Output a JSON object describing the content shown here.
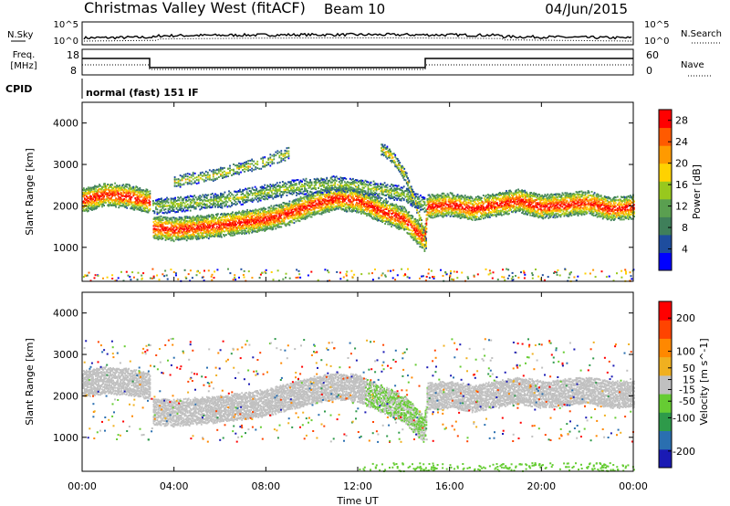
{
  "header": {
    "station": "Christmas Valley West (fitACF)",
    "beam": "Beam 10",
    "date": "04/Jun/2015"
  },
  "strip_labels": {
    "nsky": "N.Sky",
    "nsearch": "N.Search",
    "freq": "Freq.",
    "freq_unit": "[MHz]",
    "nave": "Nave",
    "cpid": "CPID",
    "cpid_value": "normal (fast) 151 IF"
  },
  "strip_ticks": {
    "noise_left": [
      "10^5",
      "10^0"
    ],
    "noise_right": [
      "10^5",
      "10^0"
    ],
    "freq_left": [
      "18",
      "8"
    ],
    "nave_right": [
      "60",
      "0"
    ]
  },
  "colors": {
    "power": [
      "#0000ff",
      "#1e4d9e",
      "#3f7f5a",
      "#5a9f50",
      "#98c81e",
      "#ffd200",
      "#ff9a00",
      "#ff5a00",
      "#ff0000"
    ],
    "velocity": [
      "#1a1ab4",
      "#2a6fb0",
      "#2e9a4a",
      "#66cc33",
      "#c0c0c0",
      "#f0b020",
      "#ff8800",
      "#ff4400",
      "#ff0000"
    ],
    "gs_gray": "#c0c0c0"
  },
  "chart_data": [
    {
      "type": "heatmap",
      "title": "Power",
      "xlabel": "Time UT",
      "ylabel": "Slant Range [km]",
      "xlim": [
        0,
        24
      ],
      "ylim": [
        180,
        4500
      ],
      "xticks": [
        "00:00",
        "04:00",
        "08:00",
        "12:00",
        "16:00",
        "20:00",
        "00:00"
      ],
      "yticks": [
        1000,
        2000,
        3000,
        4000
      ],
      "colorbar": {
        "label": "Power [dB]",
        "ticks": [
          4,
          8,
          12,
          16,
          20,
          24,
          28
        ],
        "range": [
          0,
          30
        ]
      },
      "main_echo_band": {
        "time_h": [
          0,
          1,
          2,
          3,
          3.01,
          4,
          6,
          8,
          9,
          10,
          11,
          12,
          13,
          14,
          14.9,
          15.01,
          16,
          17,
          18,
          19,
          20,
          21,
          22,
          23,
          24
        ],
        "range_km": [
          2150,
          2300,
          2250,
          2100,
          1500,
          1450,
          1550,
          1700,
          1850,
          2050,
          2200,
          2150,
          1900,
          1700,
          1200,
          2000,
          2050,
          1950,
          2050,
          2150,
          2000,
          2050,
          2100,
          1950,
          2000
        ]
      },
      "secondary_echo_band": {
        "time_h": [
          3,
          4,
          5,
          6,
          7,
          8,
          9,
          10,
          11,
          12,
          13,
          14,
          15
        ],
        "range_km": [
          2000,
          2050,
          2100,
          2150,
          2250,
          2350,
          2450,
          2500,
          2550,
          2500,
          2400,
          2300,
          2000
        ]
      },
      "oblique_echo": {
        "time_h": [
          13,
          13.5,
          14,
          14.5,
          15
        ],
        "range_km": [
          3400,
          3200,
          2800,
          2100,
          1000
        ]
      },
      "upper_echo": {
        "time_h": [
          4,
          5,
          6,
          7,
          8,
          9
        ],
        "range_km": [
          2600,
          2700,
          2800,
          2950,
          3100,
          3300
        ]
      },
      "data_gap_h": [
        2.95,
        3.05
      ]
    },
    {
      "type": "heatmap",
      "title": "Velocity",
      "xlabel": "Time UT",
      "ylabel": "Slant Range [km]",
      "xlim": [
        0,
        24
      ],
      "ylim": [
        180,
        4500
      ],
      "xticks": [
        "00:00",
        "04:00",
        "08:00",
        "12:00",
        "16:00",
        "20:00",
        "00:00"
      ],
      "yticks": [
        1000,
        2000,
        3000,
        4000
      ],
      "colorbar": {
        "label": "Velocity [m s^-1]",
        "ticks": [
          200,
          100,
          50,
          15,
          -15,
          -50,
          -100,
          -200
        ],
        "range": [
          -250,
          250
        ]
      },
      "ground_scatter_band": {
        "time_h": [
          0,
          1,
          2,
          3,
          3.01,
          4,
          6,
          8,
          9,
          10,
          11,
          12,
          13,
          14,
          14.9,
          15.01,
          16,
          17,
          18,
          19,
          20,
          21,
          22,
          23,
          24
        ],
        "range_km": [
          2300,
          2400,
          2350,
          2250,
          1650,
          1600,
          1700,
          1850,
          2000,
          2150,
          2250,
          2200,
          1950,
          1700,
          1200,
          2000,
          2050,
          1950,
          2050,
          2150,
          2050,
          2100,
          2150,
          2050,
          2050
        ]
      }
    }
  ]
}
